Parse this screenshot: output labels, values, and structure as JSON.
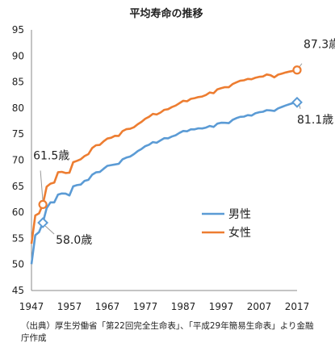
{
  "chart_data": {
    "type": "line",
    "title": "平均寿命の推移",
    "xlabel": "",
    "ylabel": "",
    "xlim": [
      1947,
      2017
    ],
    "ylim": [
      45,
      95
    ],
    "x_ticks": [
      "1947",
      "1957",
      "1967",
      "1977",
      "1987",
      "1997",
      "2007",
      "2017"
    ],
    "y_ticks": [
      "45",
      "50",
      "55",
      "60",
      "65",
      "70",
      "75",
      "80",
      "85",
      "90",
      "95"
    ],
    "grid": false,
    "legend_position": "center-right",
    "series": [
      {
        "name": "男性",
        "color": "#5b9bd5",
        "marker": "diamond",
        "x": [
          1947,
          1948,
          1949,
          1950,
          1951,
          1952,
          1953,
          1954,
          1955,
          1956,
          1957,
          1958,
          1959,
          1960,
          1961,
          1962,
          1963,
          1964,
          1965,
          1966,
          1967,
          1968,
          1969,
          1970,
          1971,
          1972,
          1973,
          1974,
          1975,
          1976,
          1977,
          1978,
          1979,
          1980,
          1981,
          1982,
          1983,
          1984,
          1985,
          1986,
          1987,
          1988,
          1989,
          1990,
          1991,
          1992,
          1993,
          1994,
          1995,
          1996,
          1997,
          1998,
          1999,
          2000,
          2001,
          2002,
          2003,
          2004,
          2005,
          2006,
          2007,
          2008,
          2009,
          2010,
          2011,
          2012,
          2013,
          2014,
          2015,
          2016,
          2017
        ],
        "values": [
          50.06,
          55.6,
          56.2,
          58.0,
          60.8,
          61.9,
          61.9,
          63.41,
          63.6,
          63.59,
          63.24,
          64.98,
          65.21,
          65.32,
          66.03,
          66.23,
          67.21,
          67.67,
          67.74,
          68.35,
          68.91,
          69.05,
          69.18,
          69.31,
          70.17,
          70.5,
          70.7,
          71.16,
          71.73,
          72.15,
          72.69,
          72.97,
          73.46,
          73.35,
          73.79,
          74.22,
          74.2,
          74.54,
          74.78,
          75.23,
          75.61,
          75.54,
          75.91,
          75.92,
          76.11,
          76.09,
          76.25,
          76.57,
          76.38,
          77.01,
          77.19,
          77.16,
          77.1,
          77.72,
          78.07,
          78.32,
          78.36,
          78.64,
          78.56,
          79.0,
          79.19,
          79.29,
          79.59,
          79.55,
          79.44,
          79.94,
          80.21,
          80.5,
          80.75,
          80.98,
          81.1
        ]
      },
      {
        "name": "女性",
        "color": "#ed7d31",
        "marker": "circle",
        "x": [
          1947,
          1948,
          1949,
          1950,
          1951,
          1952,
          1953,
          1954,
          1955,
          1956,
          1957,
          1958,
          1959,
          1960,
          1961,
          1962,
          1963,
          1964,
          1965,
          1966,
          1967,
          1968,
          1969,
          1970,
          1971,
          1972,
          1973,
          1974,
          1975,
          1976,
          1977,
          1978,
          1979,
          1980,
          1981,
          1982,
          1983,
          1984,
          1985,
          1986,
          1987,
          1988,
          1989,
          1990,
          1991,
          1992,
          1993,
          1994,
          1995,
          1996,
          1997,
          1998,
          1999,
          2000,
          2001,
          2002,
          2003,
          2004,
          2005,
          2006,
          2007,
          2008,
          2009,
          2010,
          2011,
          2012,
          2013,
          2014,
          2015,
          2016,
          2017
        ],
        "values": [
          53.96,
          59.4,
          59.8,
          61.5,
          64.9,
          65.5,
          65.7,
          67.69,
          67.75,
          67.54,
          67.6,
          69.61,
          69.88,
          70.19,
          70.79,
          71.16,
          72.34,
          72.87,
          72.92,
          73.61,
          74.15,
          74.3,
          74.67,
          74.66,
          75.58,
          75.94,
          76.02,
          76.31,
          76.89,
          77.35,
          77.95,
          78.33,
          78.89,
          78.76,
          79.13,
          79.66,
          79.78,
          80.18,
          80.48,
          80.93,
          81.39,
          81.3,
          81.77,
          81.9,
          82.11,
          82.22,
          82.51,
          82.98,
          82.85,
          83.59,
          83.82,
          84.01,
          83.99,
          84.6,
          84.93,
          85.23,
          85.33,
          85.59,
          85.52,
          85.81,
          85.99,
          86.05,
          86.44,
          86.3,
          85.9,
          86.41,
          86.61,
          86.83,
          86.99,
          87.14,
          87.3
        ]
      }
    ],
    "annotations": [
      {
        "text": "87.3歳",
        "series": "女性",
        "year": 2017,
        "value": 87.3
      },
      {
        "text": "81.1歳",
        "series": "男性",
        "year": 2017,
        "value": 81.1
      },
      {
        "text": "61.5歳",
        "series": "女性",
        "year": 1950,
        "value": 61.5
      },
      {
        "text": "58.0歳",
        "series": "男性",
        "year": 1950,
        "value": 58.0
      }
    ]
  },
  "source_note": "（出典）厚生労働省「第22回完全生命表」、「平成29年簡易生命表」より金融庁作成"
}
